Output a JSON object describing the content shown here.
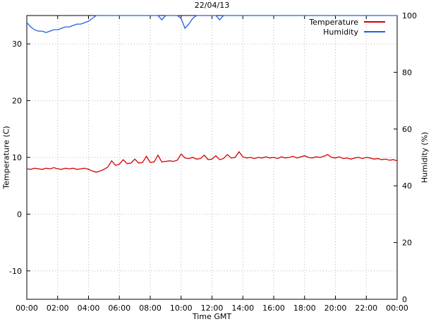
{
  "chart_data": {
    "type": "line",
    "title": "22/04/13",
    "xlabel": "Time GMT",
    "ylabel_left": "Temperature (C)",
    "ylabel_right": "Humidity (%)",
    "grid": true,
    "legend_position": "top-right",
    "x_start_hour": 0,
    "x_end_hour": 24,
    "x_step_hours": 0.25,
    "x_ticks": {
      "values": [
        0,
        2,
        4,
        6,
        8,
        10,
        12,
        14,
        16,
        18,
        20,
        22,
        24
      ],
      "labels": [
        "00:00",
        "02:00",
        "04:00",
        "06:00",
        "08:00",
        "10:00",
        "12:00",
        "14:00",
        "16:00",
        "18:00",
        "20:00",
        "22:00",
        "00:00"
      ]
    },
    "y_left": {
      "range": [
        -15,
        35
      ],
      "ticks": [
        -10,
        0,
        10,
        20,
        30
      ]
    },
    "y_right": {
      "range": [
        0,
        100
      ],
      "ticks": [
        0,
        20,
        40,
        60,
        80,
        100
      ]
    },
    "series": [
      {
        "name": "Temperature",
        "color": "#d40000",
        "axis": "left",
        "values": [
          8.0,
          7.9,
          8.1,
          8.0,
          7.9,
          8.1,
          8.0,
          8.2,
          8.0,
          7.9,
          8.1,
          8.0,
          8.1,
          7.9,
          8.0,
          8.1,
          7.9,
          7.6,
          7.4,
          7.6,
          7.9,
          8.3,
          9.4,
          8.6,
          8.8,
          9.6,
          8.9,
          9.0,
          9.7,
          9.0,
          9.1,
          10.2,
          9.1,
          9.2,
          10.4,
          9.2,
          9.3,
          9.4,
          9.3,
          9.5,
          10.6,
          9.9,
          9.8,
          10.0,
          9.7,
          9.8,
          10.4,
          9.6,
          9.7,
          10.3,
          9.6,
          9.8,
          10.5,
          9.9,
          10.0,
          11.0,
          10.1,
          9.9,
          10.0,
          9.8,
          10.0,
          9.9,
          10.1,
          9.9,
          10.0,
          9.8,
          10.1,
          9.9,
          10.0,
          10.2,
          9.9,
          10.1,
          10.3,
          10.0,
          9.9,
          10.1,
          10.0,
          10.2,
          10.5,
          10.0,
          9.9,
          10.1,
          9.8,
          9.9,
          9.7,
          9.9,
          10.0,
          9.8,
          10.0,
          9.9,
          9.7,
          9.8,
          9.6,
          9.7,
          9.5,
          9.6,
          9.4
        ]
      },
      {
        "name": "Humidity",
        "color": "#2060df",
        "axis": "right",
        "values": [
          97.5,
          96,
          95,
          94.5,
          94.5,
          94,
          94.5,
          95,
          95,
          95.5,
          96,
          96,
          96.5,
          97,
          97,
          97.5,
          98,
          99,
          100,
          100,
          100,
          100,
          100,
          100,
          100,
          100,
          100,
          100,
          100,
          100,
          100,
          100,
          100,
          100,
          100,
          98.5,
          100,
          100,
          100,
          100,
          99,
          95.5,
          97,
          99,
          100,
          100,
          100,
          100,
          100,
          100,
          98.5,
          100,
          100,
          100,
          100,
          100,
          100,
          100,
          100,
          100,
          100,
          100,
          100,
          100,
          100,
          100,
          100,
          100,
          100,
          100,
          100,
          100,
          100,
          100,
          100,
          100,
          100,
          100,
          100,
          100,
          100,
          100,
          100,
          100,
          100,
          100,
          100,
          100,
          100,
          100,
          100,
          100,
          100,
          100,
          100,
          100,
          100
        ]
      }
    ]
  }
}
